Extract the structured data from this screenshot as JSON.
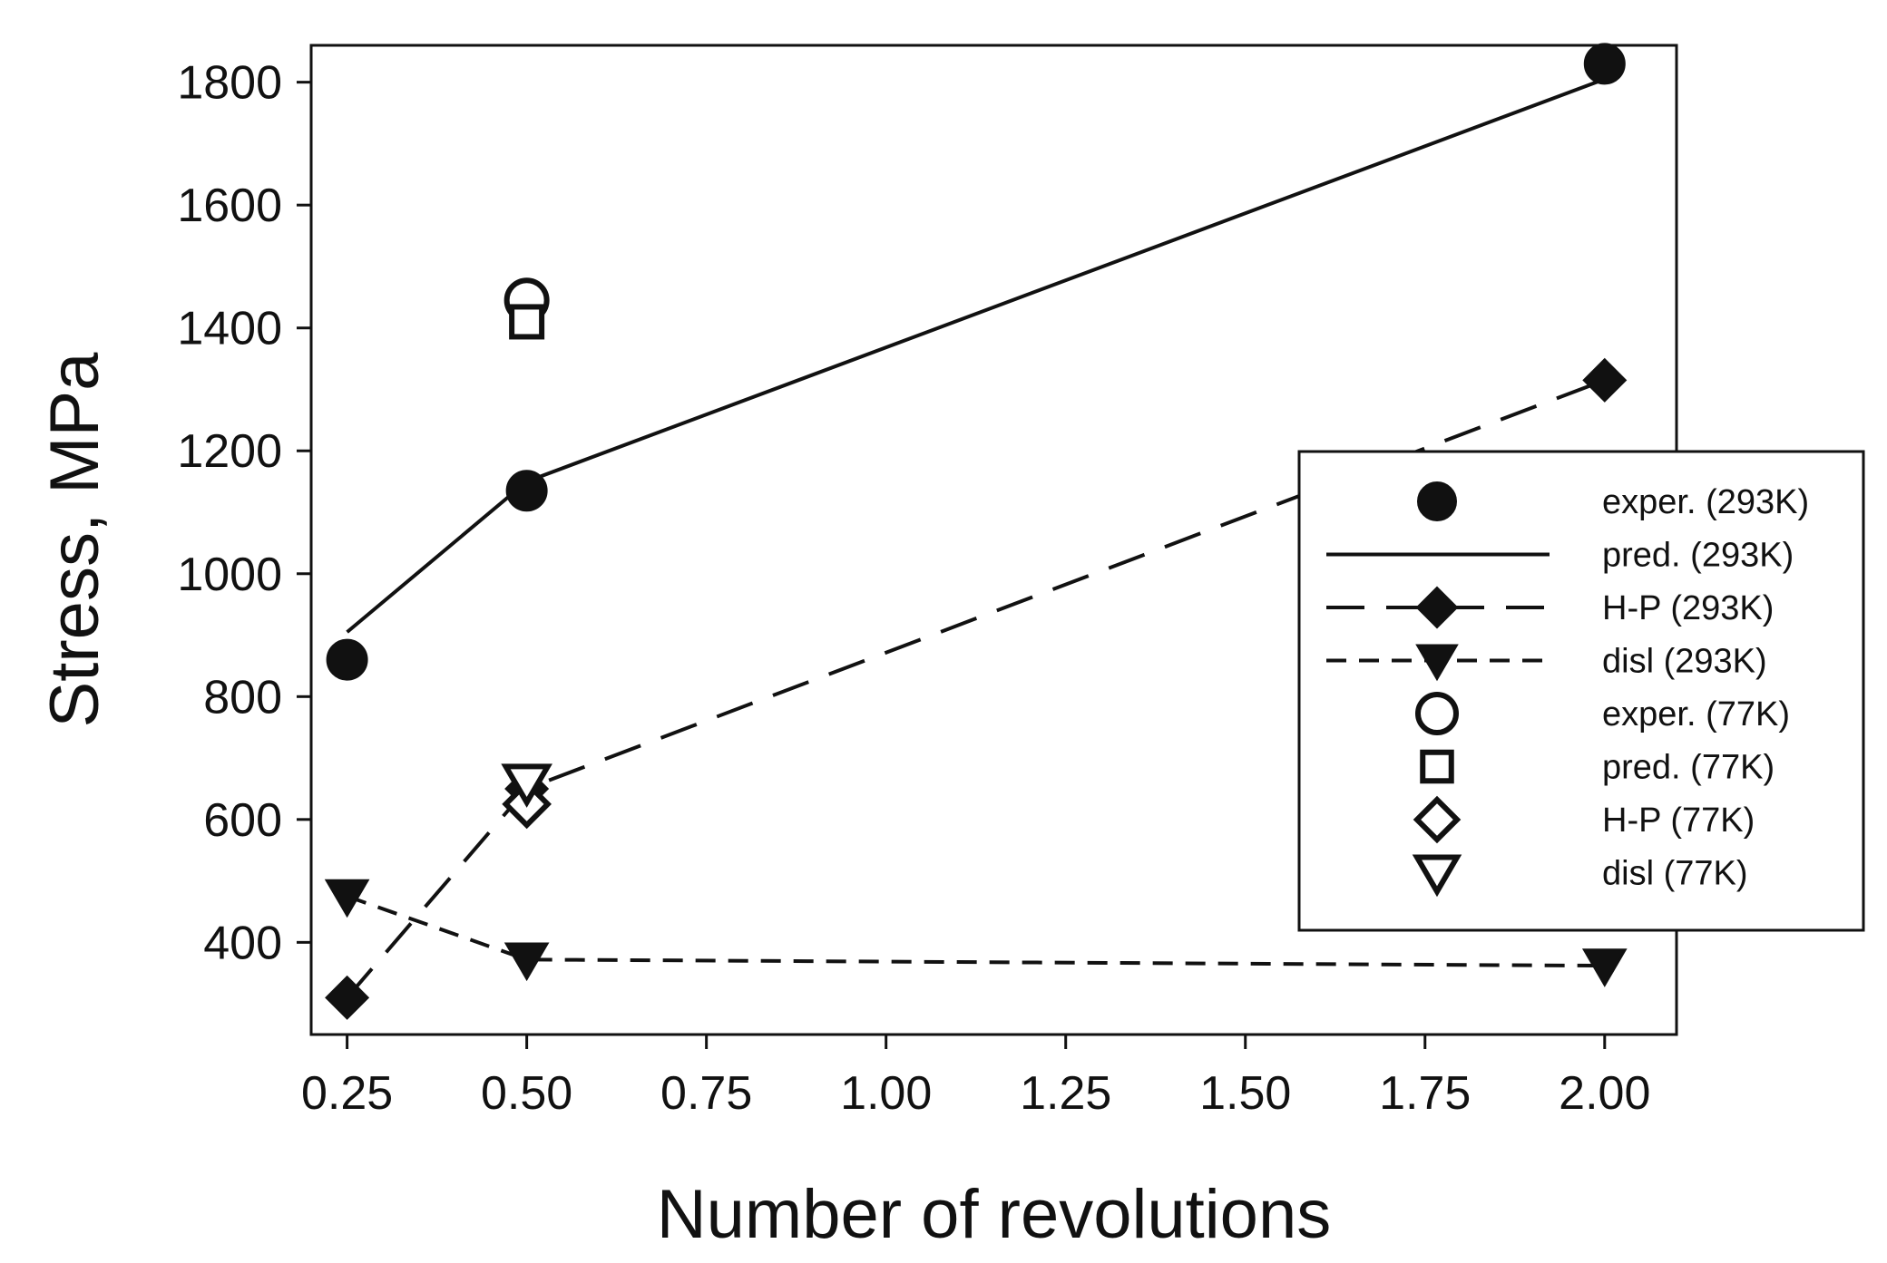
{
  "chart_data": {
    "type": "line",
    "title": "",
    "xlabel": "Number of revolutions",
    "ylabel": "Stress, MPa",
    "xlim": [
      0.2,
      2.1
    ],
    "ylim": [
      250,
      1860
    ],
    "x_ticks": [
      0.25,
      0.5,
      0.75,
      1.0,
      1.25,
      1.5,
      1.75,
      2.0
    ],
    "x_tick_labels": [
      "0.25",
      "0.50",
      "0.75",
      "1.00",
      "1.25",
      "1.50",
      "1.75",
      "2.00"
    ],
    "y_ticks": [
      400,
      600,
      800,
      1000,
      1200,
      1400,
      1600,
      1800
    ],
    "y_tick_labels": [
      "400",
      "600",
      "800",
      "1000",
      "1200",
      "1400",
      "1600",
      "1800"
    ],
    "grid": false,
    "legend_position": "right",
    "series": [
      {
        "name": "exper. (293K)",
        "marker": "filled-circle",
        "line": "none",
        "x": [
          0.25,
          0.5,
          2.0
        ],
        "y": [
          860,
          1135,
          1830
        ]
      },
      {
        "name": "pred. (293K)",
        "marker": "none",
        "line": "solid",
        "x": [
          0.25,
          0.5,
          2.0
        ],
        "y": [
          905,
          1150,
          1805
        ]
      },
      {
        "name": "H-P (293K)",
        "marker": "filled-diamond",
        "line": "long-dash",
        "x": [
          0.25,
          0.5,
          2.0
        ],
        "y": [
          310,
          650,
          1315
        ]
      },
      {
        "name": "disl (293K)",
        "marker": "filled-triangle-down",
        "line": "short-dash",
        "x": [
          0.25,
          0.5,
          2.0
        ],
        "y": [
          475,
          372,
          362
        ]
      },
      {
        "name": "exper. (77K)",
        "marker": "open-circle",
        "line": "none",
        "x": [
          0.5
        ],
        "y": [
          1445
        ]
      },
      {
        "name": "pred. (77K)",
        "marker": "open-square",
        "line": "none",
        "x": [
          0.5
        ],
        "y": [
          1410
        ]
      },
      {
        "name": "H-P (77K)",
        "marker": "open-diamond",
        "line": "none",
        "x": [
          0.5
        ],
        "y": [
          625
        ]
      },
      {
        "name": "disl (77K)",
        "marker": "open-triangle-down",
        "line": "none",
        "x": [
          0.5
        ],
        "y": [
          660
        ]
      }
    ]
  }
}
